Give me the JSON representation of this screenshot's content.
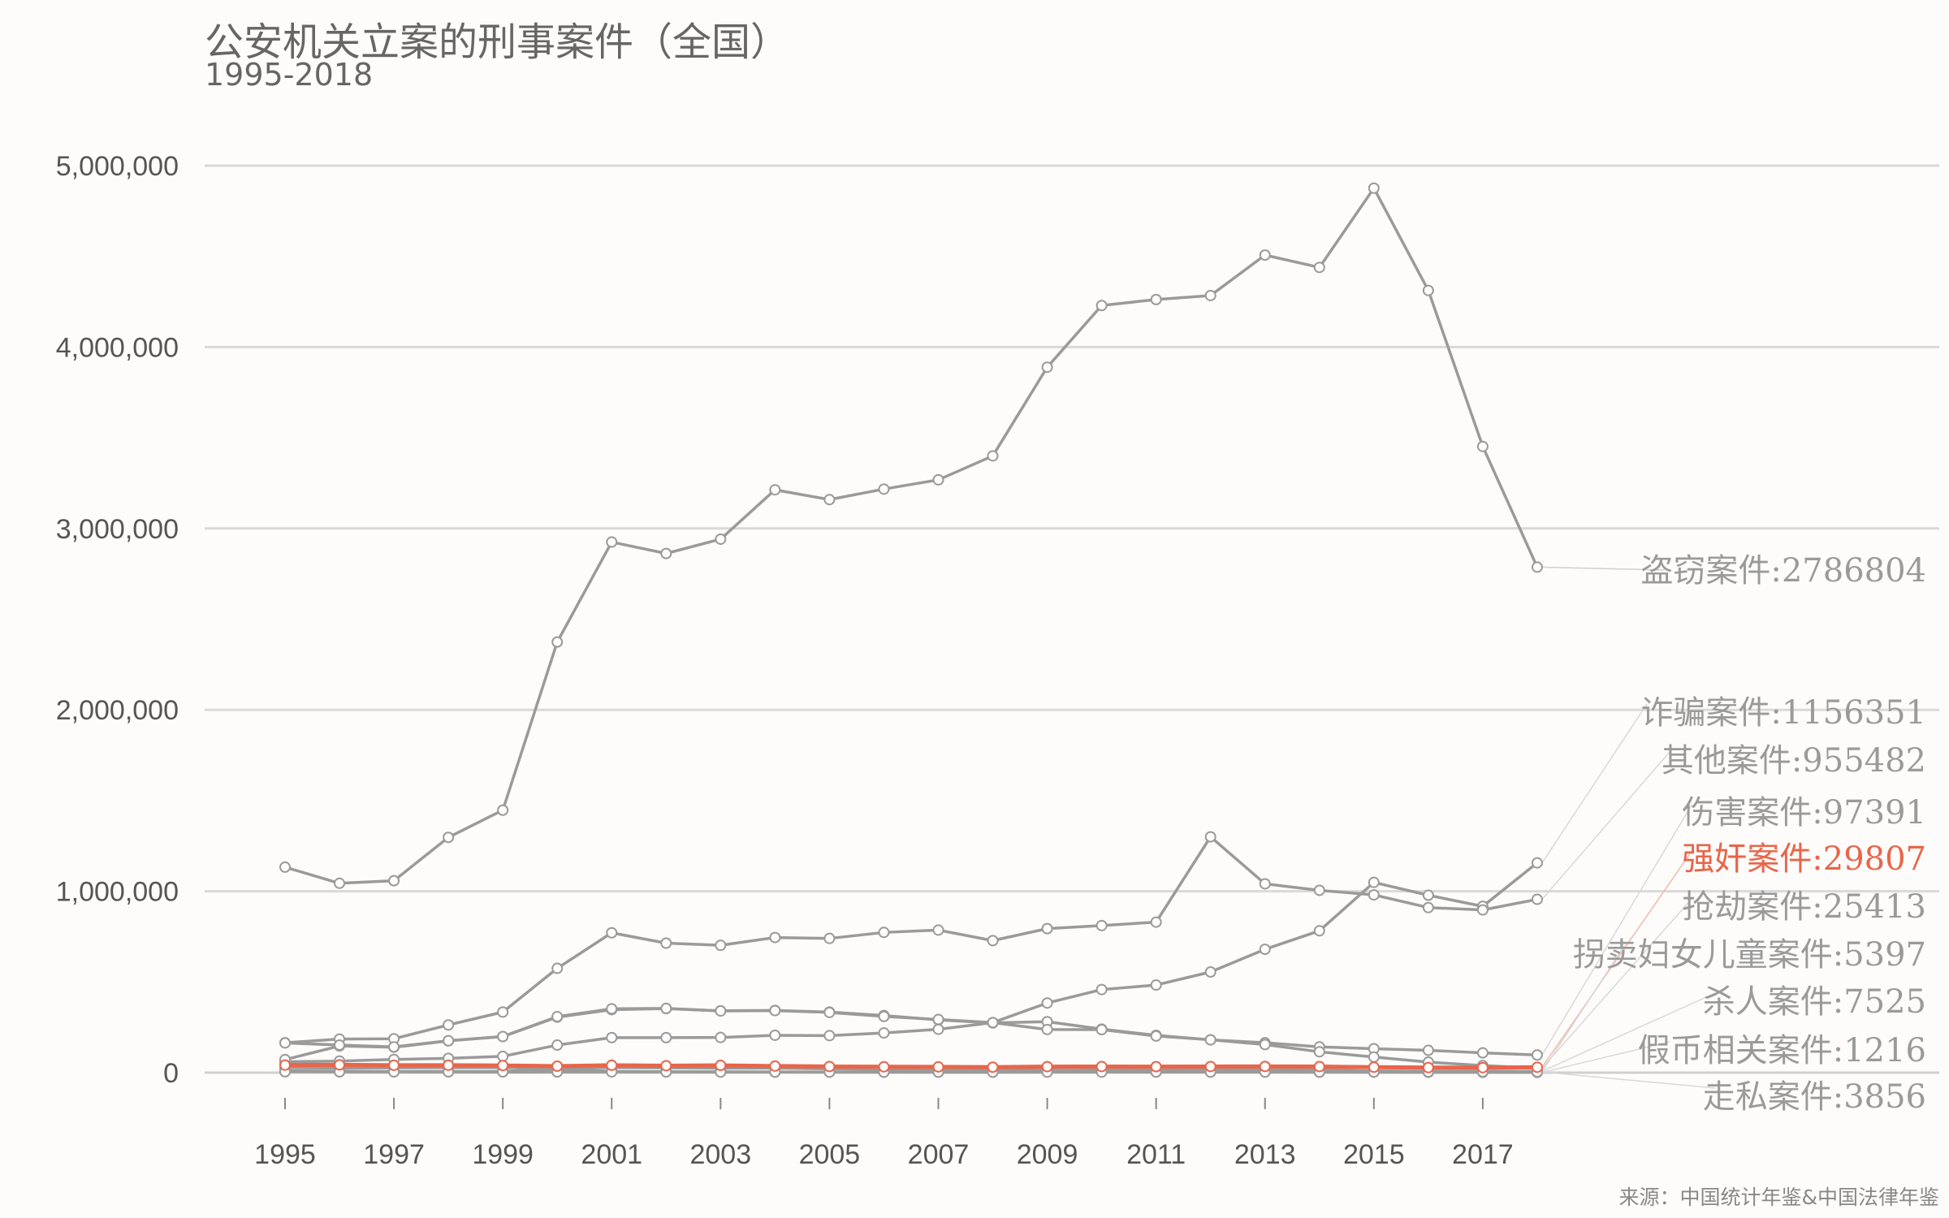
{
  "title": "公安机关立案的刑事案件（全国）",
  "subtitle": "1995-2018",
  "source": "来源：中国统计年鉴&中国法律年鉴",
  "colors": {
    "line": "#9a9a9a",
    "highlight": "#e8654a",
    "grid": "#d9d9d9",
    "label": "#9a9a9a",
    "axis_text": "#555555"
  },
  "chart_data": {
    "type": "line",
    "title": "公安机关立案的刑事案件（全国）",
    "subtitle": "1995-2018",
    "xlabel": "",
    "ylabel": "",
    "ylim": [
      0,
      5000000
    ],
    "yticks": [
      0,
      1000000,
      2000000,
      3000000,
      4000000,
      5000000
    ],
    "ytick_labels": [
      "0",
      "1,000,000",
      "2,000,000",
      "3,000,000",
      "4,000,000",
      "5,000,000"
    ],
    "x": [
      1995,
      1996,
      1997,
      1998,
      1999,
      2000,
      2001,
      2002,
      2003,
      2004,
      2005,
      2006,
      2007,
      2008,
      2009,
      2010,
      2011,
      2012,
      2013,
      2014,
      2015,
      2016,
      2017,
      2018
    ],
    "xtick_labels": [
      "1995",
      "1997",
      "1999",
      "2001",
      "2003",
      "2005",
      "2007",
      "2009",
      "2011",
      "2013",
      "2015",
      "2017"
    ],
    "grid": "horizontal",
    "legend": "direct labels at right",
    "series": [
      {
        "name": "盗窃案件",
        "label": "盗窃案件:2786804",
        "highlight": false,
        "values": [
          1133000,
          1044000,
          1058000,
          1297000,
          1447000,
          2374000,
          2925000,
          2862000,
          2941000,
          3213000,
          3159000,
          3217000,
          3268000,
          3400000,
          3889000,
          4229000,
          4262000,
          4284000,
          4507000,
          4439000,
          4876000,
          4312000,
          3452000,
          2786804
        ]
      },
      {
        "name": "诈骗案件",
        "label": "诈骗案件:1156351",
        "highlight": false,
        "values": [
          60000,
          64000,
          73000,
          79000,
          90000,
          152000,
          193000,
          193000,
          194000,
          206000,
          204000,
          219000,
          239000,
          276000,
          384000,
          458000,
          483000,
          555000,
          680000,
          782000,
          1049000,
          978000,
          917000,
          1156351
        ]
      },
      {
        "name": "其他案件",
        "label": "其他案件:955482",
        "highlight": false,
        "values": [
          165000,
          185000,
          187000,
          263000,
          334000,
          575000,
          771000,
          714000,
          702000,
          745000,
          740000,
          773000,
          786000,
          728000,
          794000,
          811000,
          830000,
          1300000,
          1041000,
          1005000,
          980000,
          910000,
          897000,
          955482
        ]
      },
      {
        "name": "伤害案件",
        "label": "伤害案件:97391",
        "highlight": false,
        "values": [
          72000,
          147000,
          140000,
          175000,
          199000,
          306000,
          347000,
          353000,
          341000,
          343000,
          334000,
          315000,
          291000,
          274000,
          281000,
          240000,
          206000,
          181000,
          165000,
          142000,
          132000,
          123000,
          109000,
          97391
        ]
      },
      {
        "name": "强奸案件",
        "label": "强奸案件:29807",
        "highlight": true,
        "values": [
          41823,
          42820,
          40699,
          40967,
          39435,
          35819,
          40600,
          38209,
          40088,
          36175,
          33710,
          32352,
          31833,
          30248,
          33286,
          33696,
          32986,
          33835,
          34102,
          33417,
          29948,
          27767,
          27664,
          29807
        ]
      },
      {
        "name": "抢劫案件",
        "label": "抢劫案件:25413",
        "highlight": false,
        "values": [
          164000,
          152000,
          142000,
          176000,
          199000,
          309000,
          352000,
          354000,
          340000,
          342000,
          332000,
          310000,
          293000,
          276000,
          238000,
          237000,
          202000,
          181000,
          155000,
          115000,
          86000,
          58000,
          39000,
          25413
        ]
      },
      {
        "name": "拐卖妇女儿童案件",
        "label": "拐卖妇女儿童案件:5397",
        "highlight": false,
        "values": [
          10670,
          8290,
          6425,
          6513,
          7257,
          23163,
          7008,
          5684,
          3721,
          3343,
          2884,
          2557,
          2378,
          2566,
          6513,
          18525,
          13964,
          18532,
          20735,
          16483,
          9150,
          7121,
          6668,
          5397
        ]
      },
      {
        "name": "杀人案件",
        "label": "杀人案件:7525",
        "highlight": false,
        "values": [
          27356,
          25411,
          26070,
          27670,
          27426,
          28429,
          27501,
          26276,
          24393,
          24711,
          20770,
          17973,
          16119,
          14811,
          14667,
          13410,
          12013,
          11286,
          10640,
          10083,
          9200,
          8634,
          7990,
          7525
        ]
      },
      {
        "name": "假币相关案件",
        "label": "假币相关案件:1216",
        "highlight": false,
        "values": [
          6000,
          5000,
          4800,
          4500,
          4300,
          5400,
          5900,
          5000,
          4700,
          4100,
          3800,
          3400,
          3200,
          3000,
          3900,
          4200,
          3600,
          3300,
          3100,
          2800,
          2500,
          1900,
          1500,
          1216
        ]
      },
      {
        "name": "走私案件",
        "label": "走私案件:3856",
        "highlight": false,
        "values": [
          5000,
          4500,
          4200,
          4300,
          4100,
          3900,
          4000,
          3800,
          3500,
          3400,
          3300,
          3200,
          3100,
          3000,
          3100,
          3200,
          3300,
          3400,
          3500,
          3600,
          3700,
          3700,
          3800,
          3856
        ]
      }
    ]
  }
}
